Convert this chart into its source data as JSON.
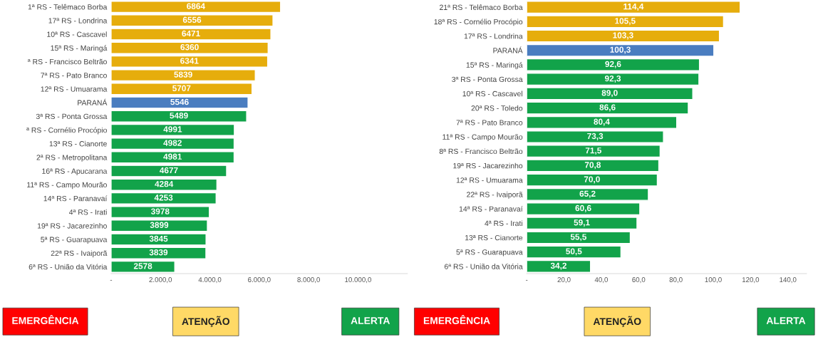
{
  "chart_data": [
    {
      "type": "bar",
      "orientation": "horizontal",
      "data_labels": true,
      "categories": [
        "1ª RS - Telêmaco Borba",
        "17ª RS - Londrina",
        "10ª RS - Cascavel",
        "15ª RS - Maringá",
        "ª RS - Francisco Beltrão",
        "7ª RS - Pato Branco",
        "12ª RS - Umuarama",
        "PARANÁ",
        "3ª RS - Ponta Grossa",
        "ª RS - Cornélio Procópio",
        "13ª RS - Cianorte",
        "2ª RS - Metropolitana",
        "16ª RS - Apucarana",
        "11ª RS - Campo Mourão",
        "14ª RS - Paranavaí",
        "4ª RS - Irati",
        "19ª RS - Jacarezinho",
        "5ª RS - Guarapuava",
        "22ª RS - Ivaiporã",
        "6ª RS - União da Vitória"
      ],
      "values": [
        6864,
        6556,
        6471,
        6360,
        6341,
        5839,
        5707,
        5546,
        5489,
        4991,
        4982,
        4981,
        4677,
        4284,
        4253,
        3978,
        3899,
        3845,
        3839,
        2578
      ],
      "colors": [
        "#e6ad0c",
        "#e6ad0c",
        "#e6ad0c",
        "#e6ad0c",
        "#e6ad0c",
        "#e6ad0c",
        "#e6ad0c",
        "#4a7dc0",
        "#12a34a",
        "#12a34a",
        "#12a34a",
        "#12a34a",
        "#12a34a",
        "#12a34a",
        "#12a34a",
        "#12a34a",
        "#12a34a",
        "#12a34a",
        "#12a34a",
        "#12a34a"
      ],
      "xlim": [
        0,
        12000
      ],
      "xticks": [
        {
          "value": 0,
          "label": "-"
        },
        {
          "value": 2000,
          "label": "2.000,0"
        },
        {
          "value": 4000,
          "label": "4.000,0"
        },
        {
          "value": 6000,
          "label": "6.000,0"
        },
        {
          "value": 8000,
          "label": "8.000,0"
        },
        {
          "value": 10000,
          "label": "10.000,0"
        }
      ]
    },
    {
      "type": "bar",
      "orientation": "horizontal",
      "categories": [
        "21ª RS - Telêmaco Borba",
        "18ª RS - Cornélio Procópio",
        "17ª RS - Londrina",
        "PARANÁ",
        "15ª RS - Maringá",
        "3ª RS - Ponta Grossa",
        "10ª RS - Cascavel",
        "20ª RS - Toledo",
        "7ª RS - Pato Branco",
        "11ª RS - Campo Mourão",
        "8ª RS - Francisco Beltrão",
        "19ª RS - Jacarezinho",
        "12ª RS - Umuarama",
        "22ª RS - Ivaiporã",
        "14ª RS - Paranavaí",
        "4ª RS - Irati",
        "13ª RS - Cianorte",
        "5ª RS - Guarapuava",
        "6ª RS - União da Vitória"
      ],
      "values": [
        114.4,
        105.5,
        103.3,
        100.3,
        92.6,
        92.3,
        89.0,
        86.6,
        80.4,
        73.3,
        71.5,
        70.8,
        70.0,
        65.2,
        60.6,
        59.1,
        55.5,
        50.5,
        34.2
      ],
      "value_labels": [
        "114,4",
        "105,5",
        "103,3",
        "100,3",
        "92,6",
        "92,3",
        "89,0",
        "86,6",
        "80,4",
        "73,3",
        "71,5",
        "70,8",
        "70,0",
        "65,2",
        "60,6",
        "59,1",
        "55,5",
        "50,5",
        "34,2"
      ],
      "colors": [
        "#e6ad0c",
        "#e6ad0c",
        "#e6ad0c",
        "#4a7dc0",
        "#12a34a",
        "#12a34a",
        "#12a34a",
        "#12a34a",
        "#12a34a",
        "#12a34a",
        "#12a34a",
        "#12a34a",
        "#12a34a",
        "#12a34a",
        "#12a34a",
        "#12a34a",
        "#12a34a",
        "#12a34a",
        "#12a34a"
      ],
      "xlim": [
        0,
        150
      ],
      "xticks": [
        {
          "value": 0,
          "label": "-"
        },
        {
          "value": 20,
          "label": "20,0"
        },
        {
          "value": 40,
          "label": "40,0"
        },
        {
          "value": 60,
          "label": "60,0"
        },
        {
          "value": 80,
          "label": "80,0"
        },
        {
          "value": 100,
          "label": "100,0"
        },
        {
          "value": 120,
          "label": "120,0"
        },
        {
          "value": 140,
          "label": "140,0"
        }
      ]
    },
    {
      "type": "other",
      "annotations": [
        "EMERGÊNCIA",
        "ATENÇÃO",
        "ALERTA",
        "EMERGÊNCIA",
        "ATENÇÃO",
        "ALERTA"
      ],
      "colors": [
        "#ff0000",
        "#ffd966",
        "#12a34a",
        "#ff0000",
        "#ffd966",
        "#12a34a"
      ]
    }
  ]
}
